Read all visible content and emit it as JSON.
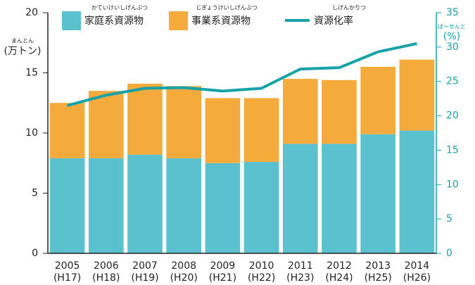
{
  "chart_data": {
    "type": "bar",
    "stacked": true,
    "categories": [
      "2005",
      "2006",
      "2007",
      "2008",
      "2009",
      "2010",
      "2011",
      "2012",
      "2013",
      "2014"
    ],
    "era_labels": [
      "(H17)",
      "(H18)",
      "(H19)",
      "(H20)",
      "(H21)",
      "(H22)",
      "(H23)",
      "(H24)",
      "(H25)",
      "(H26)"
    ],
    "y_label": "(万トン)",
    "y_label_ruby": "まんとん",
    "y2_label": "(%)",
    "y2_label_ruby": "ぱーせんと",
    "series": [
      {
        "name": "家庭系資源物",
        "ruby": "かていけいしげんぶつ",
        "color": "#5bc1cf",
        "values": [
          7.9,
          7.9,
          8.2,
          7.9,
          7.5,
          7.6,
          9.1,
          9.1,
          9.9,
          10.2
        ]
      },
      {
        "name": "事業系資源物",
        "ruby": "じぎょうけいしげんぶつ",
        "color": "#f5aa3c",
        "values": [
          4.6,
          5.6,
          5.9,
          6.0,
          5.4,
          5.3,
          5.4,
          5.3,
          5.6,
          5.9
        ]
      },
      {
        "name": "資源化率",
        "ruby": "しげんかりつ",
        "type": "line",
        "axis": "y2",
        "color": "#17a2a8",
        "values": [
          21.5,
          23.0,
          24.0,
          24.1,
          23.6,
          24.0,
          26.8,
          27.0,
          29.3,
          30.5
        ]
      }
    ],
    "ylim": [
      0,
      20
    ],
    "yticks": [
      0,
      5,
      10,
      15,
      20
    ],
    "y2lim": [
      0,
      35
    ],
    "y2ticks": [
      0,
      5,
      10,
      15,
      20,
      25,
      30,
      35
    ]
  }
}
